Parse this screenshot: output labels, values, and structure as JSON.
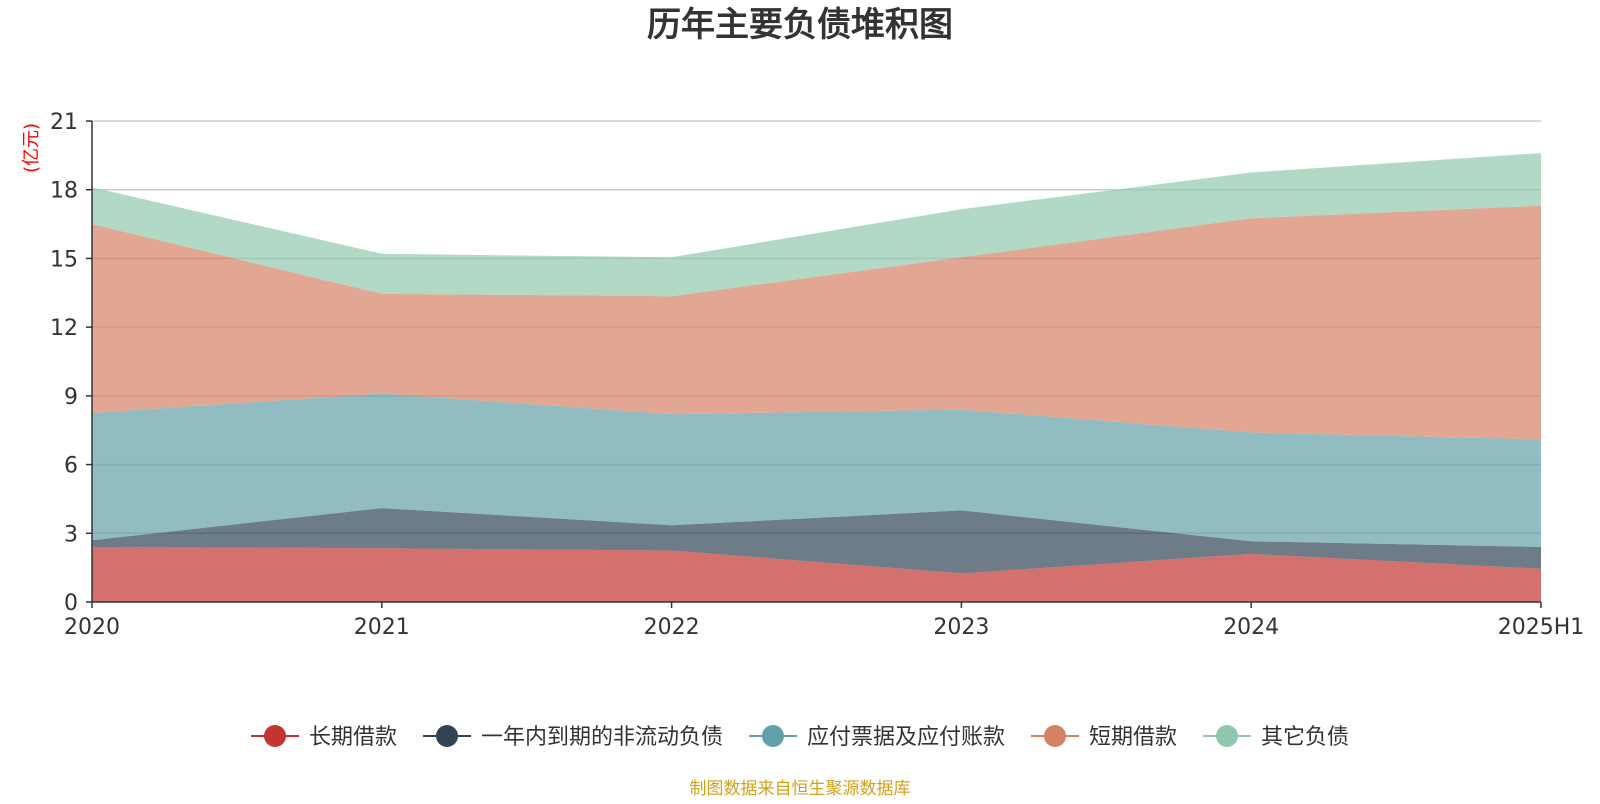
{
  "chart_data": {
    "type": "area",
    "stacked": true,
    "title": "历年主要负债堆积图",
    "ylabel": "(亿元)",
    "xlabel": "",
    "x": [
      "2020",
      "2021",
      "2022",
      "2023",
      "2024",
      "2025H1"
    ],
    "ylim": [
      0,
      21
    ],
    "yticks": [
      0,
      3,
      6,
      9,
      12,
      15,
      18,
      21
    ],
    "grid": true,
    "legend_position": "bottom",
    "series": [
      {
        "name": "长期借款",
        "color": "#c23531",
        "values": [
          2.4,
          2.35,
          2.25,
          1.25,
          2.1,
          1.45
        ]
      },
      {
        "name": "一年内到期的非流动负债",
        "color": "#2f4554",
        "values": [
          0.3,
          1.75,
          1.1,
          2.75,
          0.55,
          0.95
        ]
      },
      {
        "name": "应付票据及应付账款",
        "color": "#61a0a8",
        "values": [
          5.55,
          5.0,
          4.85,
          4.4,
          4.75,
          4.7
        ]
      },
      {
        "name": "短期借款",
        "color": "#d48265",
        "values": [
          8.25,
          4.35,
          5.15,
          6.65,
          9.35,
          10.2
        ]
      },
      {
        "name": "其它负债",
        "color": "#91c7ae",
        "values": [
          1.6,
          1.75,
          1.7,
          2.1,
          2.0,
          2.3
        ]
      }
    ],
    "source_note": "制图数据来自恒生聚源数据库"
  }
}
